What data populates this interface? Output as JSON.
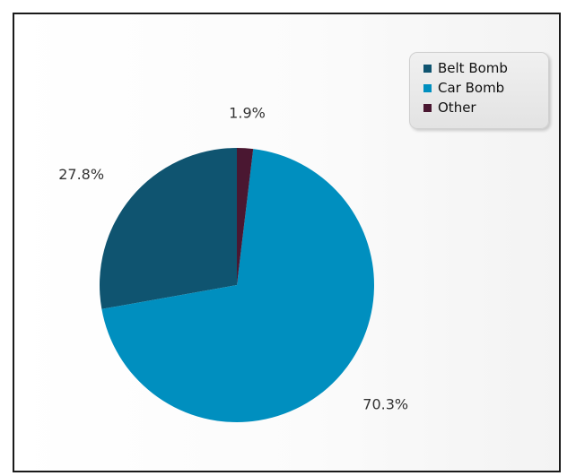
{
  "chart_data": {
    "type": "pie",
    "title": "",
    "slices": [
      {
        "name": "Belt Bomb",
        "value": 27.8,
        "label": "27.8%",
        "color": "#0f5470"
      },
      {
        "name": "Car Bomb",
        "value": 70.3,
        "label": "70.3%",
        "color": "#008fbf"
      },
      {
        "name": "Other",
        "value": 1.9,
        "label": "1.9%",
        "color": "#4a1731"
      }
    ],
    "start_angle_deg": 90,
    "direction": "counterclockwise",
    "legend": "top-right"
  }
}
